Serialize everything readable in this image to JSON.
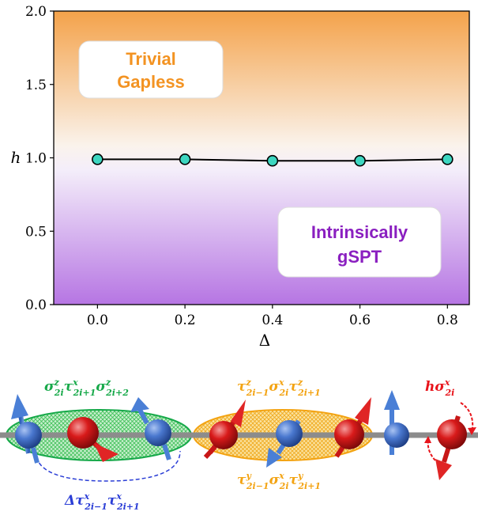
{
  "colors": {
    "trivial": "#f39322",
    "gspt": "#8a1fc0",
    "green": "#17a94a",
    "orange": "#f3a312",
    "blue": "#2b3ed6",
    "red": "#e8141b",
    "point_fill": "#3dd6c0",
    "gradient_top": "#f4a24a",
    "gradient_bottom": "#b675e3"
  },
  "phases": {
    "trivial_line1": "Trivial",
    "trivial_line2": "Gapless",
    "gspt_line1": "Intrinsically",
    "gspt_line2": "gSPT"
  },
  "chart_data": {
    "type": "line",
    "xlabel": "Δ",
    "ylabel": "h",
    "xlim": [
      -0.1,
      0.85
    ],
    "ylim": [
      0.0,
      2.0
    ],
    "xticks": [
      0.0,
      0.2,
      0.4,
      0.6,
      0.8
    ],
    "xtick_labels": [
      "0.0",
      "0.2",
      "0.4",
      "0.6",
      "0.8"
    ],
    "yticks": [
      0.0,
      0.5,
      1.0,
      1.5,
      2.0
    ],
    "ytick_labels": [
      "0.0",
      "0.5",
      "1.0",
      "1.5",
      "2.0"
    ],
    "series": [
      {
        "x": [
          0.0,
          0.2,
          0.4,
          0.6,
          0.8
        ],
        "y": [
          0.99,
          0.99,
          0.98,
          0.98,
          0.99
        ]
      }
    ]
  },
  "schematic": {
    "green_term": {
      "base": [
        "σ",
        "τ",
        "σ"
      ],
      "sup": [
        "z",
        "x",
        "z"
      ],
      "sub": [
        "2i",
        "2i+1",
        "2i+2"
      ]
    },
    "orange_top_term": {
      "base": [
        "τ",
        "σ",
        "τ"
      ],
      "sup": [
        "z",
        "x",
        "z"
      ],
      "sub": [
        "2i−1",
        "2i",
        "2i+1"
      ]
    },
    "orange_bottom_term": {
      "base": [
        "τ",
        "σ",
        "τ"
      ],
      "sup": [
        "y",
        "x",
        "y"
      ],
      "sub": [
        "2i−1",
        "2i",
        "2i+1"
      ]
    },
    "blue_term": {
      "prefix": "Δ",
      "base": [
        "τ",
        "τ"
      ],
      "sup": [
        "x",
        "x"
      ],
      "sub": [
        "2i−1",
        "2i+1"
      ]
    },
    "red_term": {
      "prefix": "h",
      "base": [
        "σ"
      ],
      "sup": [
        "x"
      ],
      "sub": [
        "2i"
      ]
    }
  }
}
